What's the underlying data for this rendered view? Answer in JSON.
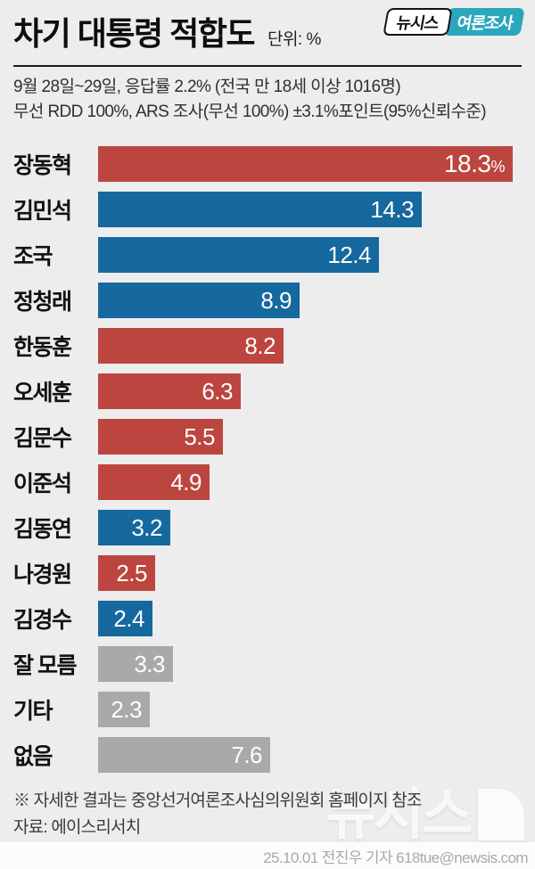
{
  "header": {
    "title": "차기 대통령 적합도",
    "unit_label": "단위: %",
    "badge": {
      "left": "뉴시스",
      "right": "여론조사"
    }
  },
  "survey_info": {
    "line1": "9월 28일~29일, 응답률 2.2% (전국 만 18세 이상 1016명)",
    "line2": "무선 RDD 100%, ARS 조사(무선 100%) ±3.1%포인트(95%신뢰수준)"
  },
  "chart_data": {
    "type": "bar",
    "orientation": "horizontal",
    "title": "차기 대통령 적합도",
    "unit": "%",
    "xlim": [
      0,
      18.3
    ],
    "grid": false,
    "legend": "none",
    "categories": [
      "장동혁",
      "김민석",
      "조국",
      "정청래",
      "한동훈",
      "오세훈",
      "김문수",
      "이준석",
      "김동연",
      "나경원",
      "김경수",
      "잘 모름",
      "기타",
      "없음"
    ],
    "values": [
      18.3,
      14.3,
      12.4,
      8.9,
      8.2,
      6.3,
      5.5,
      4.9,
      3.2,
      2.5,
      2.4,
      3.3,
      2.3,
      7.6
    ],
    "value_labels": [
      "18.3%",
      "14.3",
      "12.4",
      "8.9",
      "8.2",
      "6.3",
      "5.5",
      "4.9",
      "3.2",
      "2.5",
      "2.4",
      "3.3",
      "2.3",
      "7.6"
    ],
    "bar_colors": [
      "#bd4540",
      "#15699f",
      "#15699f",
      "#15699f",
      "#bd4540",
      "#bd4540",
      "#bd4540",
      "#bd4540",
      "#15699f",
      "#bd4540",
      "#15699f",
      "#a9a9a9",
      "#a9a9a9",
      "#a9a9a9"
    ]
  },
  "footnotes": {
    "note": "※ 자세한 결과는 중앙선거여론조사심의위원회 홈페이지 참조",
    "source": "자료: 에이스리서치"
  },
  "watermark": "뉴시스",
  "footer": {
    "credit": "25.10.01 전진우 기자 618tue@newsis.com"
  },
  "colors": {
    "red": "#bd4540",
    "blue": "#15699f",
    "gray": "#a9a9a9",
    "teal": "#2ba7bc",
    "background": "#ededed",
    "footer_background": "#fcfcfc"
  }
}
